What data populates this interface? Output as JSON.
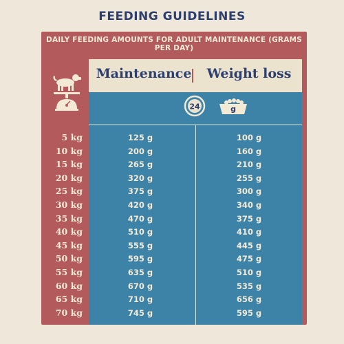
{
  "title": "FEEDING GUIDELINES",
  "subtitle": "DAILY FEEDING AMOUNTS FOR ADULT MAINTENANCE (GRAMS PER DAY)",
  "columns": {
    "maintenance": "Maintenance",
    "weight_loss": "Weight loss"
  },
  "icons": {
    "clock_label": "24",
    "bowl_label": "g",
    "dog_icon": "dog-on-scale-icon"
  },
  "colors": {
    "background": "#efe8da",
    "red": "#b35a5c",
    "blue": "#3d82a7",
    "navy": "#2d3f6e",
    "cream": "#ece3cf"
  },
  "rows": [
    {
      "weight": "5 kg",
      "maintenance": "125 g",
      "weight_loss": "100 g"
    },
    {
      "weight": "10 kg",
      "maintenance": "200 g",
      "weight_loss": "160 g"
    },
    {
      "weight": "15 kg",
      "maintenance": "265 g",
      "weight_loss": "210 g"
    },
    {
      "weight": "20 kg",
      "maintenance": "320 g",
      "weight_loss": "255 g"
    },
    {
      "weight": "25 kg",
      "maintenance": "375 g",
      "weight_loss": "300 g"
    },
    {
      "weight": "30 kg",
      "maintenance": "420 g",
      "weight_loss": "340 g"
    },
    {
      "weight": "35 kg",
      "maintenance": "470 g",
      "weight_loss": "375 g"
    },
    {
      "weight": "40 kg",
      "maintenance": "510 g",
      "weight_loss": "410 g"
    },
    {
      "weight": "45 kg",
      "maintenance": "555 g",
      "weight_loss": "445 g"
    },
    {
      "weight": "50 kg",
      "maintenance": "595 g",
      "weight_loss": "475 g"
    },
    {
      "weight": "55 kg",
      "maintenance": "635 g",
      "weight_loss": "510 g"
    },
    {
      "weight": "60 kg",
      "maintenance": "670 g",
      "weight_loss": "535 g"
    },
    {
      "weight": "65 kg",
      "maintenance": "710 g",
      "weight_loss": "656 g"
    },
    {
      "weight": "70 kg",
      "maintenance": "745 g",
      "weight_loss": "595 g"
    }
  ]
}
